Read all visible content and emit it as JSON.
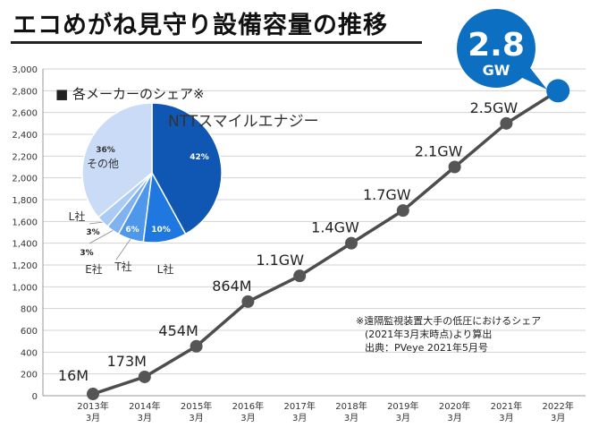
{
  "title": "エコめがね見守り設備容量の推移",
  "chart_data": [
    {
      "type": "line",
      "categories": [
        "2013年\n3月",
        "2014年\n3月",
        "2015年\n3月",
        "2016年\n3月",
        "2017年\n3月",
        "2018年\n3月",
        "2019年\n3月",
        "2020年\n3月",
        "2021年\n3月",
        "2022年\n3月"
      ],
      "values": [
        16,
        173,
        454,
        864,
        1100,
        1400,
        1700,
        2100,
        2500,
        2800
      ],
      "data_labels": [
        "16M",
        "173M",
        "454M",
        "864M",
        "1.1GW",
        "1.4GW",
        "1.7GW",
        "2.1GW",
        "2.5GW",
        ""
      ],
      "ylim": [
        0,
        3000
      ],
      "yticks": [
        "0",
        "200",
        "400",
        "600",
        "800",
        "1,000",
        "1,200",
        "1,400",
        "1,600",
        "1,800",
        "2,000",
        "2,200",
        "2,400",
        "2,600",
        "2,800",
        "3,000"
      ],
      "grid": true,
      "highlight": {
        "value": "2.8",
        "unit": "GW"
      },
      "line_color": "#4d4d4d",
      "marker_color": "#555555",
      "highlight_color": "#0c6fc2"
    },
    {
      "type": "pie",
      "title": "■ 各メーカーのシェア※",
      "slices": [
        {
          "name": "NTTスマイルエナジー",
          "value": 42,
          "label": "42%",
          "color": "#1057b3"
        },
        {
          "name": "L社",
          "value": 10,
          "label": "10%",
          "color": "#1f78e0"
        },
        {
          "name": "T社",
          "value": 6,
          "label": "6%",
          "color": "#4f97ea"
        },
        {
          "name": "E社",
          "value": 3,
          "label": "3%",
          "color": "#7fb2ef"
        },
        {
          "name": "L社",
          "value": 3,
          "label": "3%",
          "color": "#a9cbf4"
        },
        {
          "name": "その他",
          "value": 36,
          "label": "36%",
          "color": "#c9dbf7"
        }
      ]
    }
  ],
  "note": {
    "line1": "※遠隔監視装置大手の低圧におけるシェア",
    "line2": "(2021年3月末時点)より算出",
    "line3": "出典：PVeye 2021年5月号"
  }
}
